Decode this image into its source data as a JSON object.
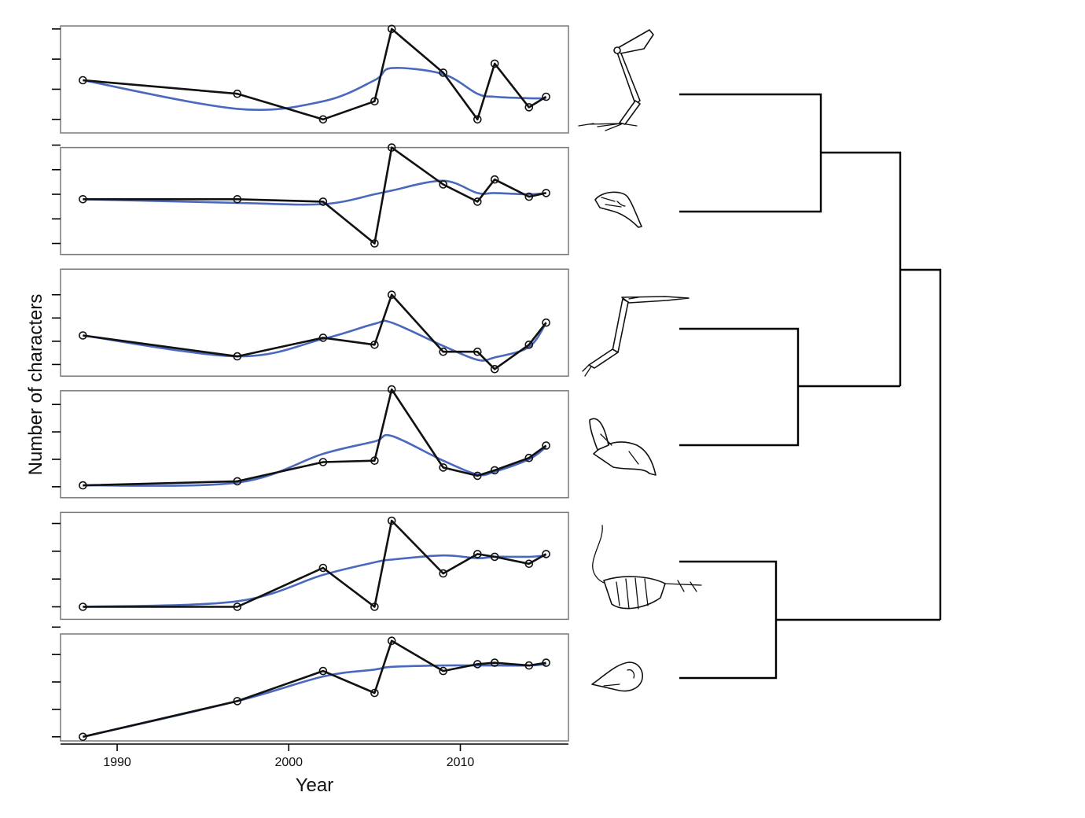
{
  "chart_data": {
    "type": "line",
    "xlabel": "Year",
    "ylabel": "Number of characters",
    "xlim": [
      1986.7,
      2016.3
    ],
    "xticks": [
      1990,
      2000,
      2010
    ],
    "x": [
      1988,
      1997,
      2002,
      2005,
      2006,
      2009,
      2011,
      2012,
      2014,
      2015
    ],
    "panels": [
      {
        "region": "hindlimb",
        "ylim": [
          0.55,
          4.1
        ],
        "yticks": [
          1,
          2,
          3,
          4
        ],
        "observed": [
          2.3,
          1.85,
          1.0,
          1.6,
          4.0,
          2.55,
          1.0,
          2.85,
          1.4,
          1.75
        ],
        "smooth": [
          2.3,
          1.35,
          1.6,
          2.3,
          2.7,
          2.5,
          1.85,
          1.75,
          1.7,
          1.7
        ]
      },
      {
        "region": "skull",
        "ylim": [
          0.55,
          4.9
        ],
        "yticks": [
          1,
          2,
          3,
          4,
          5
        ],
        "observed": [
          2.8,
          2.8,
          2.7,
          1.0,
          4.9,
          3.4,
          2.7,
          3.6,
          2.9,
          3.05
        ],
        "smooth": [
          2.8,
          2.65,
          2.6,
          3.0,
          3.15,
          3.55,
          3.05,
          3.05,
          3.0,
          3.05
        ]
      },
      {
        "region": "forelimb",
        "ylim": [
          0.5,
          5.1
        ],
        "yticks": [
          1,
          2,
          3,
          4
        ],
        "observed": [
          2.25,
          1.35,
          2.15,
          1.85,
          4.0,
          1.55,
          1.55,
          0.8,
          1.85,
          2.8
        ],
        "smooth": [
          2.25,
          1.35,
          2.1,
          2.75,
          2.8,
          1.8,
          1.2,
          1.3,
          1.75,
          2.8
        ]
      },
      {
        "region": "mandible",
        "ylim": [
          0.6,
          4.5
        ],
        "yticks": [
          1,
          2,
          3,
          4
        ],
        "observed": [
          1.05,
          1.2,
          1.9,
          1.95,
          4.55,
          1.7,
          1.4,
          1.6,
          2.05,
          2.5
        ],
        "smooth": [
          1.05,
          1.15,
          2.2,
          2.65,
          2.85,
          1.95,
          1.45,
          1.55,
          2.0,
          2.45
        ]
      },
      {
        "region": "axial",
        "ylim": [
          0.55,
          4.4
        ],
        "yticks": [
          1,
          2,
          3,
          4
        ],
        "observed": [
          1.0,
          1.0,
          2.4,
          1.0,
          4.1,
          2.2,
          2.9,
          2.8,
          2.55,
          2.9
        ],
        "smooth": [
          1.0,
          1.2,
          2.15,
          2.6,
          2.7,
          2.85,
          2.75,
          2.8,
          2.8,
          2.85
        ]
      },
      {
        "region": "cranium",
        "ylim": [
          0.85,
          4.75
        ],
        "yticks": [
          1,
          2,
          3,
          4,
          5
        ],
        "observed": [
          1.0,
          2.3,
          3.4,
          2.6,
          4.5,
          3.4,
          3.65,
          3.7,
          3.6,
          3.7
        ],
        "smooth": [
          1.0,
          2.3,
          3.2,
          3.45,
          3.55,
          3.6,
          3.6,
          3.6,
          3.6,
          3.65
        ]
      }
    ]
  },
  "icons": [
    "hindlimb-icon",
    "skull-lateral-icon",
    "forelimb-icon",
    "mandible-icon",
    "skeleton-icon",
    "cranium-icon"
  ],
  "colors": {
    "observed": "#111111",
    "trend": "#4a69bd",
    "frame": "#7a7a7a"
  }
}
